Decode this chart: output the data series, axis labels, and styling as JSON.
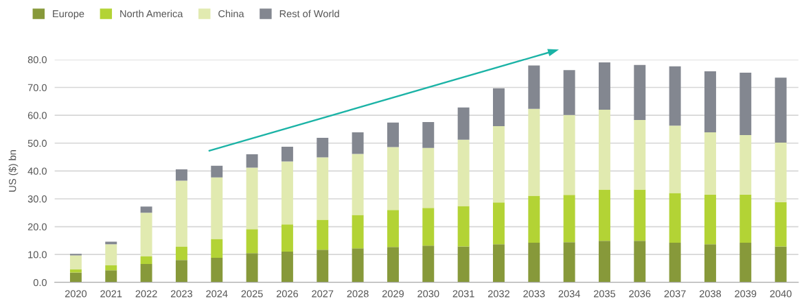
{
  "chart_data": {
    "type": "bar",
    "stacked": true,
    "ylabel": "US ($) bn",
    "categories": [
      "2020",
      "2021",
      "2022",
      "2023",
      "2024",
      "2025",
      "2026",
      "2027",
      "2028",
      "2029",
      "2030",
      "2031",
      "2032",
      "2033",
      "2034",
      "2035",
      "2036",
      "2037",
      "2038",
      "2039",
      "2040"
    ],
    "series": [
      {
        "name": "Europe",
        "color": "#87993a",
        "values": [
          3.5,
          4.3,
          6.6,
          8.0,
          8.8,
          10.5,
          11.0,
          11.7,
          12.2,
          12.7,
          13.2,
          12.9,
          13.7,
          14.2,
          14.4,
          14.9,
          14.9,
          14.2,
          13.7,
          14.2,
          12.9
        ]
      },
      {
        "name": "North America",
        "color": "#b3d335",
        "values": [
          1.1,
          1.8,
          2.7,
          4.9,
          6.8,
          8.6,
          9.8,
          10.8,
          12.0,
          13.3,
          13.5,
          14.5,
          15.0,
          16.9,
          17.0,
          18.4,
          18.4,
          17.9,
          17.8,
          17.3,
          15.9
        ]
      },
      {
        "name": "China",
        "color": "#e1eab0",
        "values": [
          5.1,
          7.6,
          15.7,
          23.6,
          22.1,
          22.1,
          22.6,
          22.4,
          21.9,
          22.6,
          21.6,
          23.8,
          27.4,
          31.2,
          28.7,
          28.7,
          25.0,
          24.2,
          22.4,
          21.4,
          21.4
        ]
      },
      {
        "name": "Rest of World",
        "color": "#838790",
        "values": [
          0.5,
          0.9,
          2.2,
          4.1,
          4.2,
          4.8,
          5.3,
          7.0,
          7.8,
          8.8,
          9.3,
          11.6,
          13.6,
          15.6,
          16.1,
          17.0,
          19.8,
          21.3,
          21.9,
          22.4,
          23.3
        ]
      }
    ],
    "ylim": [
      0,
      80
    ],
    "yticks": [
      {
        "value": 0,
        "label": "0.0"
      },
      {
        "value": 10,
        "label": "10.0"
      },
      {
        "value": 20,
        "label": "20.0"
      },
      {
        "value": 30,
        "label": "30.0"
      },
      {
        "value": 40,
        "label": "40.0"
      },
      {
        "value": 50,
        "label": "50.0"
      },
      {
        "value": 60,
        "label": "60.0"
      },
      {
        "value": 70,
        "label": "70.0"
      },
      {
        "value": 80,
        "label": "80.0"
      }
    ],
    "grid": "y",
    "legend": "top left"
  }
}
